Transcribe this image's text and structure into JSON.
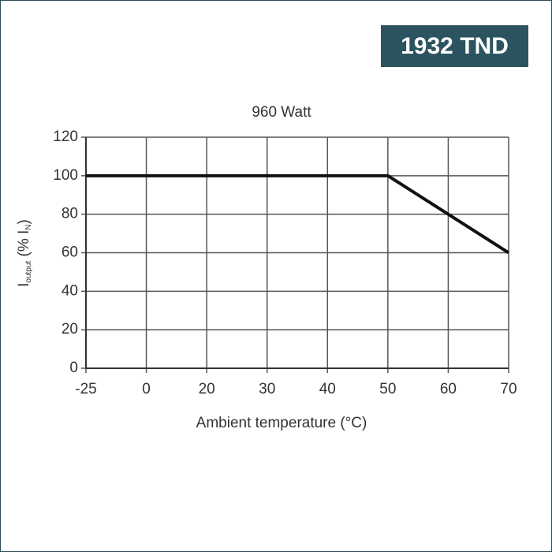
{
  "badge": {
    "price": "1932 TND"
  },
  "chart_data": {
    "type": "line",
    "title": "960 Watt",
    "xlabel": "Ambient temperature (°C)",
    "ylabel": [
      "I",
      "output",
      " (% I",
      "N",
      ")"
    ],
    "categories": [
      "-25",
      "0",
      "20",
      "30",
      "40",
      "50",
      "60",
      "70"
    ],
    "series": [
      {
        "color": "#111111",
        "values": [
          100,
          100,
          100,
          100,
          100,
          100,
          80,
          60
        ]
      }
    ],
    "ylim": [
      0,
      120
    ],
    "yticks": [
      0,
      20,
      40,
      60,
      80,
      100,
      120
    ],
    "grid": true
  }
}
